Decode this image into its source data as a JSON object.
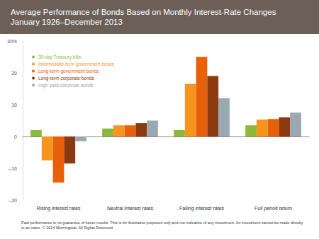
{
  "chart_data": {
    "type": "bar",
    "title": "Average Performance of Bonds Based on Monthly Interest-Rate Changes",
    "subtitle": "January 1926–December 2013",
    "categories": [
      "Rising interest rates",
      "Neutral interest rates",
      "Falling interest rates",
      "Full period return"
    ],
    "series": [
      {
        "name": "30-day Treasury bills",
        "color": "#8cb83c",
        "values": [
          2.0,
          2.5,
          2.0,
          3.5
        ]
      },
      {
        "name": "Intermediate-term government bonds",
        "color": "#f7941d",
        "values": [
          -7.5,
          3.5,
          16.5,
          5.3
        ]
      },
      {
        "name": "Long-term government bonds",
        "color": "#e8600a",
        "values": [
          -14.5,
          3.5,
          25.0,
          5.5
        ]
      },
      {
        "name": "Long-term corporate bonds",
        "color": "#8b3a0f",
        "values": [
          -8.5,
          4.2,
          19.0,
          6.0
        ]
      },
      {
        "name": "High-yield corporate bonds",
        "color": "#9aa8b2",
        "values": [
          -1.5,
          5.0,
          12.0,
          7.5
        ]
      }
    ],
    "ylim": [
      -20,
      30
    ],
    "yticks": [
      {
        "value": -20,
        "label": "–20"
      },
      {
        "value": -10,
        "label": "–10"
      },
      0,
      10,
      20,
      {
        "value": 30,
        "label": "30%"
      }
    ],
    "grid": false,
    "legend": "upper left",
    "annotations": [
      "Past performance is no guarantee of future results. This is for illustrative purposes only and not indicative of any investment. An investment cannot be made directly in an index. © 2014 Morningstar. All Rights Reserved."
    ]
  }
}
